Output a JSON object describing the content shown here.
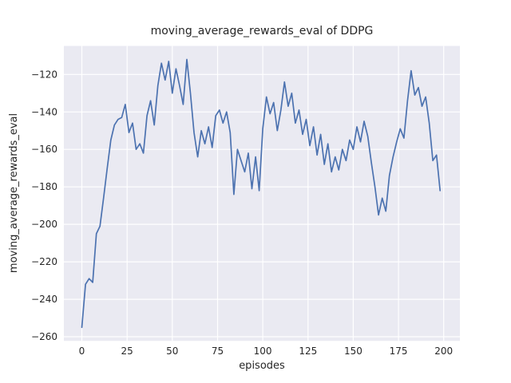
{
  "chart_data": {
    "type": "line",
    "title": "moving_average_rewards_eval of DDPG",
    "xlabel": "episodes",
    "ylabel": "moving_average_rewards_eval",
    "xticks": [
      0,
      25,
      50,
      75,
      100,
      125,
      150,
      175,
      200
    ],
    "yticks": [
      -260,
      -240,
      -220,
      -200,
      -180,
      -160,
      -140,
      -120
    ],
    "xlim": [
      -9.95,
      208.95
    ],
    "ylim": [
      -262.2,
      -104.8
    ],
    "grid": true,
    "legend": "none",
    "line_color": "#4c72b0",
    "plot_bg": "#eaeaf2",
    "grid_color": "#ffffff",
    "text_color": "#262626",
    "x": [
      0,
      2,
      4,
      6,
      8,
      10,
      12,
      14,
      16,
      18,
      20,
      22,
      24,
      26,
      28,
      30,
      32,
      34,
      36,
      38,
      40,
      42,
      44,
      46,
      48,
      50,
      52,
      54,
      56,
      58,
      60,
      62,
      64,
      66,
      68,
      70,
      72,
      74,
      76,
      78,
      80,
      82,
      84,
      86,
      88,
      90,
      92,
      94,
      96,
      98,
      100,
      102,
      104,
      106,
      108,
      110,
      112,
      114,
      116,
      118,
      120,
      122,
      124,
      126,
      128,
      130,
      132,
      134,
      136,
      138,
      140,
      142,
      144,
      146,
      148,
      150,
      152,
      154,
      156,
      158,
      160,
      162,
      164,
      166,
      168,
      170,
      172,
      174,
      176,
      178,
      180,
      182,
      184,
      186,
      188,
      190,
      192,
      194,
      196,
      198
    ],
    "y": [
      -255,
      -232,
      -229,
      -231,
      -205,
      -201,
      -186,
      -170,
      -155,
      -147,
      -144,
      -143,
      -136,
      -151,
      -146,
      -160,
      -157,
      -162,
      -142,
      -134,
      -147,
      -126,
      -114,
      -123,
      -113,
      -130,
      -117,
      -126,
      -136,
      -112,
      -130,
      -151,
      -164,
      -150,
      -157,
      -148,
      -159,
      -142,
      -139,
      -146,
      -140,
      -151,
      -184,
      -160,
      -166,
      -172,
      -162,
      -181,
      -164,
      -182,
      -149,
      -132,
      -141,
      -135,
      -150,
      -139,
      -124,
      -137,
      -130,
      -146,
      -139,
      -152,
      -144,
      -158,
      -148,
      -163,
      -152,
      -168,
      -157,
      -172,
      -164,
      -171,
      -160,
      -166,
      -155,
      -160,
      -148,
      -156,
      -145,
      -153,
      -167,
      -180,
      -195,
      -186,
      -193,
      -174,
      -164,
      -156,
      -149,
      -154,
      -134,
      -118,
      -131,
      -127,
      -137,
      -132,
      -146,
      -166,
      -163,
      -182
    ]
  }
}
